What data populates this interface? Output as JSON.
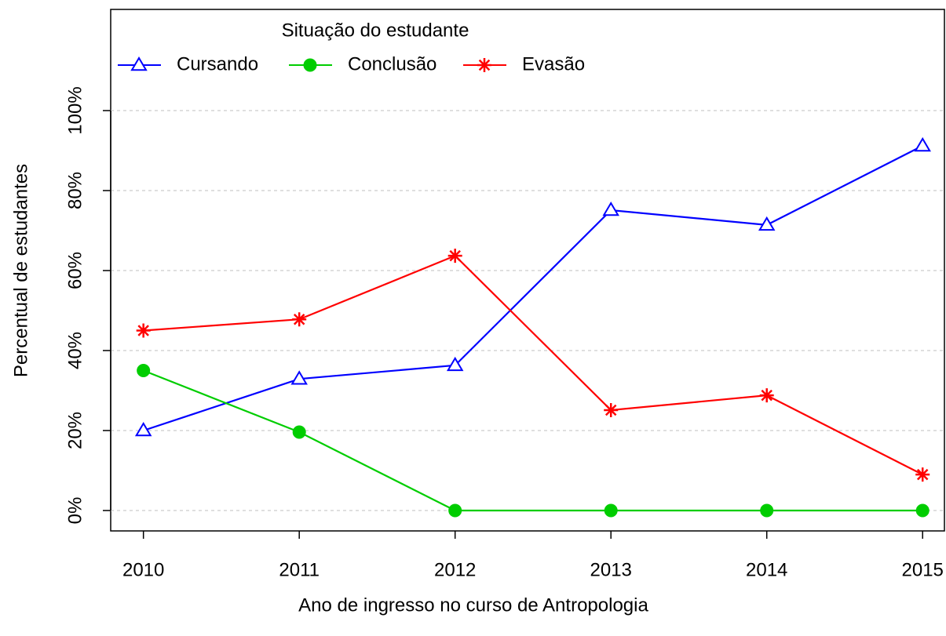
{
  "chart_data": {
    "type": "line",
    "legend_title": "Situação do estudante",
    "xlabel": "Ano de ingresso no curso de Antropologia",
    "ylabel": "Percentual de estudantes",
    "x": [
      2010,
      2011,
      2012,
      2013,
      2014,
      2015
    ],
    "series": [
      {
        "name": "Cursando",
        "color": "#0000ff",
        "marker": "triangle",
        "values": [
          20,
          32.9,
          36.3,
          75.1,
          71.4,
          91.2
        ]
      },
      {
        "name": "Conclusão",
        "color": "#00cd00",
        "marker": "circle",
        "values": [
          35,
          19.6,
          0,
          0,
          0,
          0
        ]
      },
      {
        "name": "Evasão",
        "color": "#ff0000",
        "marker": "asterisk",
        "values": [
          45,
          47.8,
          63.7,
          25.1,
          28.8,
          9
        ]
      }
    ],
    "xlim": [
      2009.79,
      2015.14
    ],
    "ylim": [
      -5.1,
      125.3
    ],
    "xticks": [
      2010,
      2011,
      2012,
      2013,
      2014,
      2015
    ],
    "yticks": [
      {
        "value": 0,
        "label": "0%"
      },
      {
        "value": 20,
        "label": "20%"
      },
      {
        "value": 40,
        "label": "40%"
      },
      {
        "value": 60,
        "label": "60%"
      },
      {
        "value": 80,
        "label": "80%"
      },
      {
        "value": 100,
        "label": "100%"
      }
    ],
    "grid": true
  }
}
